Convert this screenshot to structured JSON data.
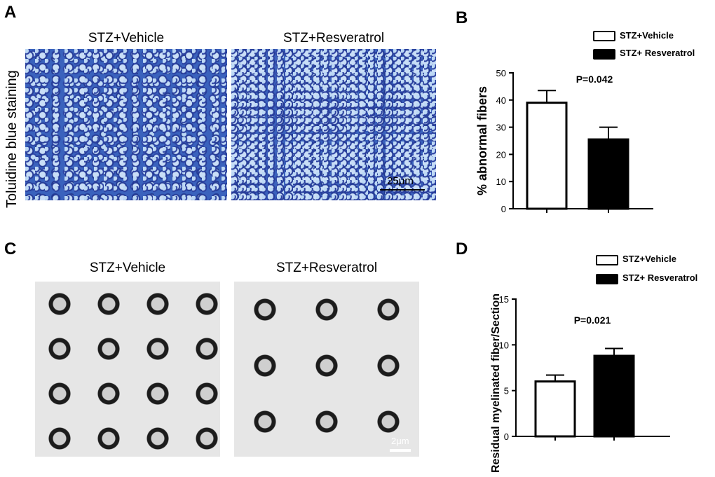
{
  "panels": {
    "A": {
      "letter": "A",
      "row_label": "Toluidine blue staining",
      "images": [
        {
          "title": "STZ+Vehicle"
        },
        {
          "title": "STZ+Resveratrol",
          "scale_bar": "25μm"
        }
      ]
    },
    "B": {
      "letter": "B"
    },
    "C": {
      "letter": "C",
      "images": [
        {
          "title": "STZ+Vehicle"
        },
        {
          "title": "STZ+Resveratrol",
          "scale_bar": "2μm"
        }
      ]
    },
    "D": {
      "letter": "D"
    }
  },
  "chart_data": [
    {
      "type": "bar",
      "panel": "B",
      "categories": [
        "STZ+Vehicle",
        "STZ+ Resveratrol"
      ],
      "values": [
        39,
        25.5
      ],
      "errors": [
        4.5,
        4.5
      ],
      "colors": [
        "#ffffff",
        "#000000"
      ],
      "ylabel": "% abnormal fibers",
      "ylim": [
        0,
        50
      ],
      "yticks": [
        0,
        10,
        20,
        30,
        40,
        50
      ],
      "annotation": "P=0.042",
      "legend": [
        "STZ+Vehicle",
        "STZ+ Resveratrol"
      ],
      "legend_position": "top-right"
    },
    {
      "type": "bar",
      "panel": "D",
      "categories": [
        "STZ+Vehicle",
        "STZ+ Resveratrol"
      ],
      "values": [
        6,
        8.8
      ],
      "errors": [
        0.7,
        0.8
      ],
      "colors": [
        "#ffffff",
        "#000000"
      ],
      "ylabel": "Residual myelinated fiber/Section",
      "ylim": [
        0,
        15
      ],
      "yticks": [
        0,
        5,
        10,
        15
      ],
      "annotation": "P=0.021",
      "legend": [
        "STZ+Vehicle",
        "STZ+ Resveratrol"
      ],
      "legend_position": "top-right"
    }
  ]
}
